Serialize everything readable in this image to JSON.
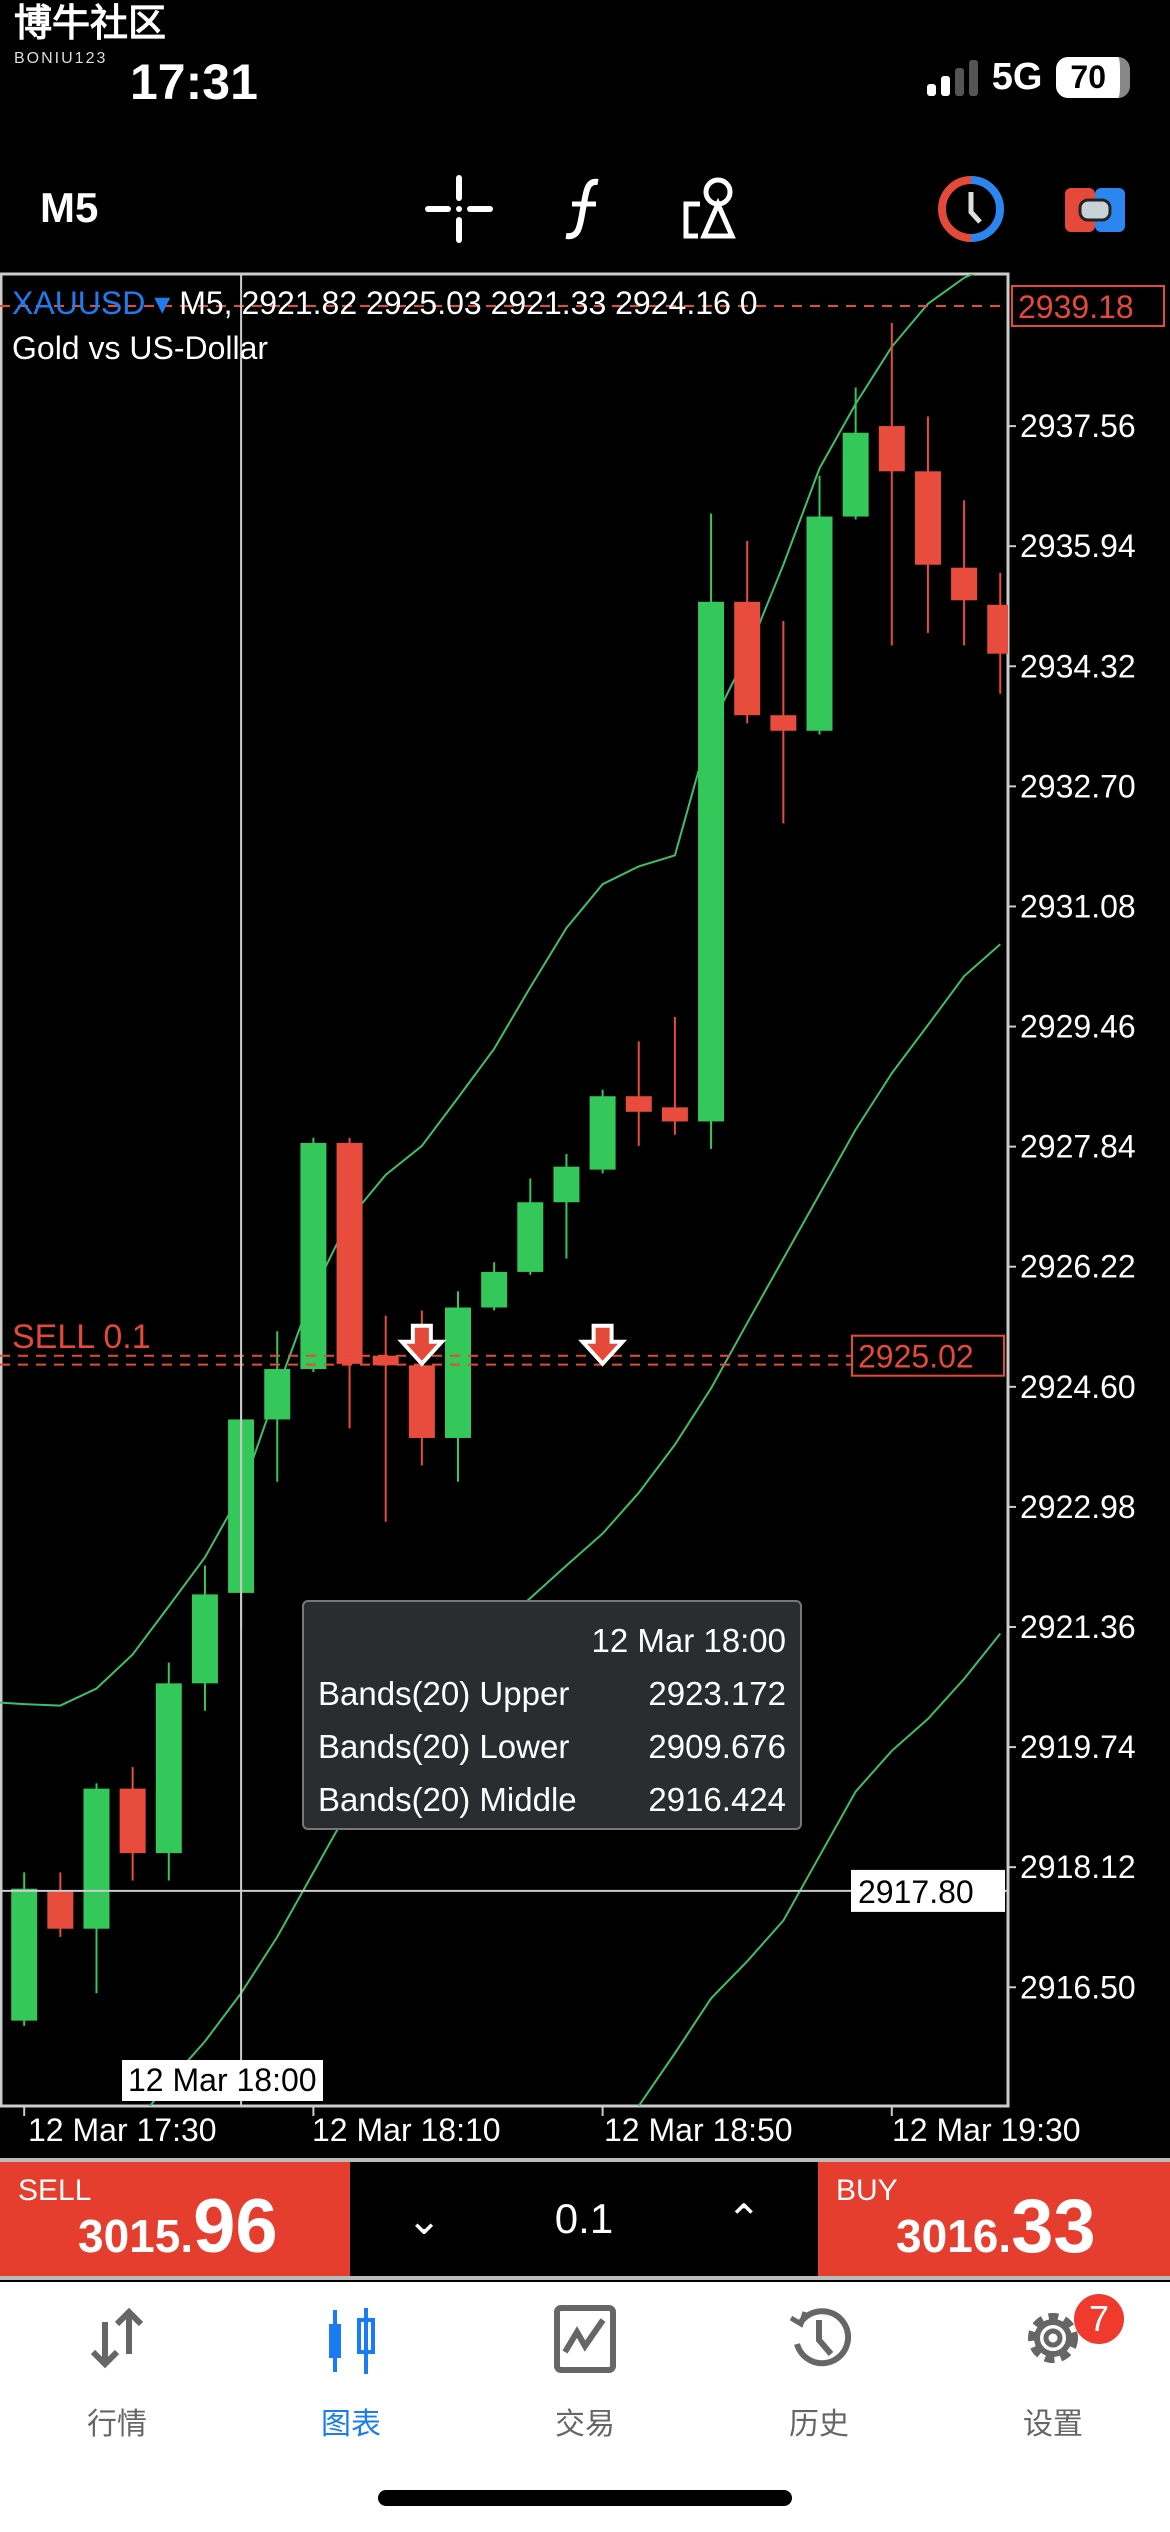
{
  "status_bar": {
    "logo_text": "博牛社区",
    "logo_sub": "BONIU123",
    "time": "17:31",
    "network": "5G",
    "battery": "70"
  },
  "toolbar": {
    "timeframe": "M5",
    "icons": [
      "crosshair-icon",
      "function-icon",
      "shapes-icon",
      "clock-icon",
      "toggle-icon"
    ]
  },
  "chart_header": {
    "symbol": "XAUUSD",
    "arrow": "▾",
    "line": "M5, 2921.82 2925.03 2921.33 2924.16 0",
    "description": "Gold vs US-Dollar"
  },
  "tooltip": {
    "time": "12 Mar 18:00",
    "rows": [
      {
        "label": "Bands(20) Upper",
        "value": "2923.172"
      },
      {
        "label": "Bands(20) Lower",
        "value": "2909.676"
      },
      {
        "label": "Bands(20) Middle",
        "value": "2916.424"
      }
    ]
  },
  "sell_line": {
    "label": "SELL 0.1",
    "price": "2925.02"
  },
  "crosshair": {
    "time": "12 Mar 18:00",
    "price": "2917.80"
  },
  "time_labels": [
    "12 Mar 17:30",
    "12 Mar 18:10",
    "12 Mar 18:50",
    "12 Mar 19:30"
  ],
  "trade_panel": {
    "sell_label": "SELL",
    "sell_small": "3015.",
    "sell_big": "96",
    "lot": "0.1",
    "buy_label": "BUY",
    "buy_small": "3016.",
    "buy_big": "33"
  },
  "nav": {
    "items": [
      {
        "label": "行情",
        "icon": "quotes-arrows-icon"
      },
      {
        "label": "图表",
        "icon": "candles-chart-icon",
        "active": true
      },
      {
        "label": "交易",
        "icon": "trade-chart-icon"
      },
      {
        "label": "历史",
        "icon": "history-icon"
      },
      {
        "label": "设置",
        "icon": "gear-icon",
        "badge": "7"
      }
    ]
  },
  "colors": {
    "bull": "#34c759",
    "bear": "#e84c3d",
    "bands": "#3fbf6a",
    "symbol": "#1e7cf0",
    "sell": "#e53e2e",
    "active_nav": "#1a7cf5"
  },
  "chart_data": {
    "type": "candlestick",
    "symbol": "XAUUSD",
    "timeframe": "M5",
    "price_ticks": [
      "2937.56",
      "2935.94",
      "2934.32",
      "2932.70",
      "2931.08",
      "2929.46",
      "2927.84",
      "2926.22",
      "2924.60",
      "2922.98",
      "2921.36",
      "2919.74",
      "2918.12",
      "2916.50"
    ],
    "current_price": "2939.18",
    "ylim": [
      2914.6,
      2940.2
    ],
    "candles": [
      [
        "17:30",
        2916.05,
        2918.05,
        2915.98,
        2917.83
      ],
      [
        "17:35",
        2917.79,
        2918.05,
        2917.18,
        2917.29
      ],
      [
        "17:40",
        2917.29,
        2919.25,
        2916.42,
        2919.18
      ],
      [
        "17:45",
        2919.18,
        2919.47,
        2917.94,
        2918.31
      ],
      [
        "17:50",
        2918.31,
        2920.88,
        2917.94,
        2920.6
      ],
      [
        "17:55",
        2920.6,
        2922.19,
        2920.23,
        2921.8
      ],
      [
        "18:00",
        2921.82,
        2925.03,
        2921.33,
        2924.16
      ],
      [
        "18:05",
        2924.16,
        2925.35,
        2923.32,
        2924.84
      ],
      [
        "18:10",
        2924.84,
        2927.96,
        2924.8,
        2927.89
      ],
      [
        "18:15",
        2927.89,
        2927.96,
        2924.04,
        2924.91
      ],
      [
        "18:20",
        2925.02,
        2925.56,
        2922.78,
        2924.89
      ],
      [
        "18:25",
        2924.89,
        2925.63,
        2923.54,
        2923.91
      ],
      [
        "18:30",
        2923.91,
        2925.89,
        2923.32,
        2925.67
      ],
      [
        "18:35",
        2925.67,
        2926.28,
        2925.63,
        2926.15
      ],
      [
        "18:40",
        2926.15,
        2927.41,
        2926.11,
        2927.09
      ],
      [
        "18:45",
        2927.09,
        2927.74,
        2926.33,
        2927.57
      ],
      [
        "18:50",
        2927.53,
        2928.61,
        2927.48,
        2928.52
      ],
      [
        "18:55",
        2928.52,
        2929.26,
        2927.85,
        2928.31
      ],
      [
        "19:00",
        2928.37,
        2929.59,
        2928.0,
        2928.18
      ],
      [
        "19:05",
        2928.18,
        2936.38,
        2927.81,
        2935.19
      ],
      [
        "19:10",
        2935.19,
        2936.01,
        2933.55,
        2933.66
      ],
      [
        "19:15",
        2933.66,
        2934.93,
        2932.2,
        2933.45
      ],
      [
        "19:20",
        2933.45,
        2936.89,
        2933.4,
        2936.34
      ],
      [
        "19:25",
        2936.34,
        2938.08,
        2936.3,
        2937.47
      ],
      [
        "19:30",
        2937.56,
        2938.95,
        2934.6,
        2936.95
      ],
      [
        "19:35",
        2936.95,
        2937.69,
        2934.77,
        2935.69
      ],
      [
        "19:40",
        2935.65,
        2936.56,
        2934.6,
        2935.21
      ],
      [
        "19:45",
        2935.15,
        2935.58,
        2933.95,
        2934.49
      ]
    ],
    "bands_upper": [
      2920.32,
      2920.3,
      2920.53,
      2920.99,
      2921.64,
      2922.3,
      2923.17,
      2924.56,
      2925.89,
      2926.87,
      2927.46,
      2927.85,
      2928.5,
      2929.16,
      2929.99,
      2930.79,
      2931.38,
      2931.62,
      2931.77,
      2933.51,
      2934.49,
      2935.69,
      2936.99,
      2937.86,
      2938.63,
      2939.21,
      2939.56,
      2939.78
    ],
    "bands_middle": [
      null,
      null,
      null,
      2914.6,
      2915.22,
      2915.77,
      2916.42,
      2917.18,
      2918.05,
      2918.92,
      2919.69,
      2920.34,
      2920.88,
      2921.32,
      2921.75,
      2922.19,
      2922.62,
      2923.17,
      2923.82,
      2924.58,
      2925.46,
      2926.33,
      2927.2,
      2928.07,
      2928.83,
      2929.48,
      2930.14,
      2930.57
    ],
    "bands_lower": [
      null,
      null,
      null,
      null,
      null,
      null,
      2909.676,
      null,
      null,
      null,
      null,
      null,
      null,
      null,
      null,
      null,
      null,
      2914.9,
      2915.61,
      2916.35,
      2916.85,
      2917.4,
      2918.27,
      2919.14,
      2919.69,
      2920.12,
      2920.66,
      2921.27
    ],
    "sell_markers": [
      "18:25",
      "18:50"
    ],
    "sell_line_prices": [
      2925.02,
      2924.9
    ]
  }
}
